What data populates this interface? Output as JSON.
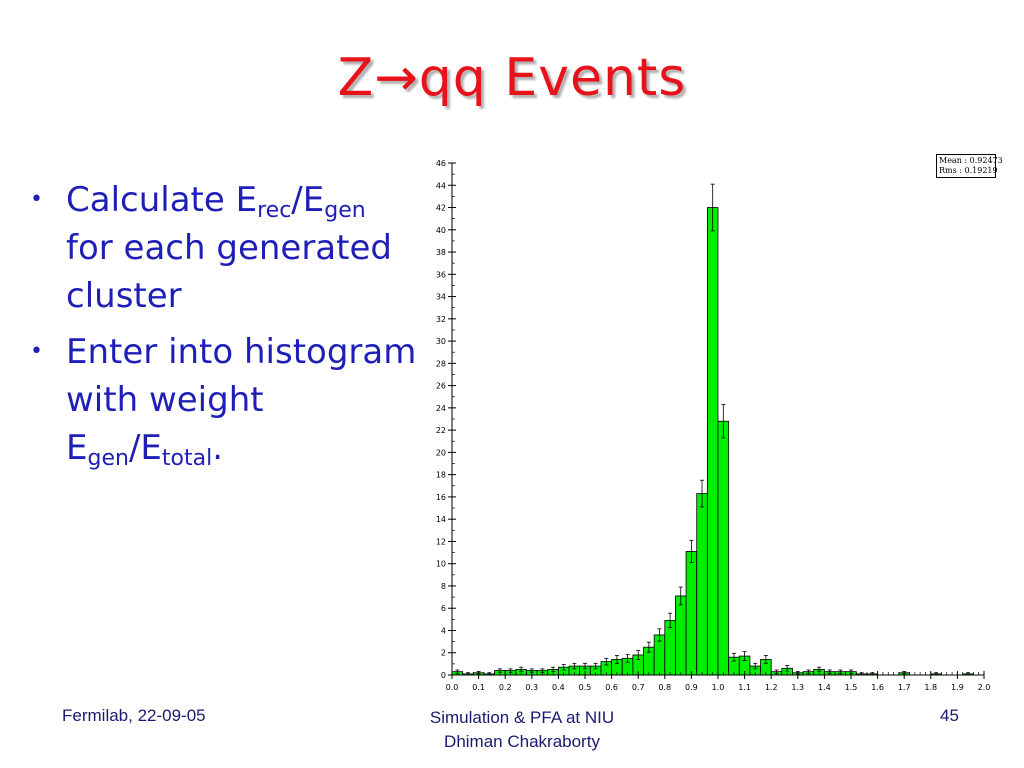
{
  "slide": {
    "title": "Z→qq Events",
    "bullets": [
      {
        "parts": [
          {
            "t": "Calculate E"
          },
          {
            "sub": "rec"
          },
          {
            "t": "/E"
          },
          {
            "sub": "gen"
          },
          {
            "t": " for each generated cluster"
          }
        ]
      },
      {
        "parts": [
          {
            "t": "Enter into histogram with weight E"
          },
          {
            "sub": "gen"
          },
          {
            "t": "/E"
          },
          {
            "sub": "total"
          },
          {
            "t": "."
          }
        ]
      }
    ],
    "footer": {
      "left": "Fermilab, 22-09-05",
      "center_line1": "Simulation & PFA at NIU",
      "center_line2": "Dhiman Chakraborty",
      "page": "45"
    }
  },
  "stats_box": {
    "mean_label": "Mean :",
    "mean_value": "0.92473",
    "rms_label": "Rms :",
    "rms_value": "0.19219"
  },
  "chart_data": {
    "type": "bar",
    "bar_color": "#00ee00",
    "xlim": [
      0.0,
      2.0
    ],
    "ylim": [
      0,
      46
    ],
    "bin_width": 0.04,
    "x_ticks": [
      "0.0",
      "0.1",
      "0.2",
      "0.3",
      "0.4",
      "0.5",
      "0.6",
      "0.7",
      "0.8",
      "0.9",
      "1.0",
      "1.1",
      "1.2",
      "1.3",
      "1.4",
      "1.5",
      "1.6",
      "1.7",
      "1.8",
      "1.9",
      "2.0"
    ],
    "y_ticks": [
      0,
      2,
      4,
      6,
      8,
      10,
      12,
      14,
      16,
      18,
      20,
      22,
      24,
      26,
      28,
      30,
      32,
      34,
      36,
      38,
      40,
      42,
      44,
      46
    ],
    "values": [
      0.3,
      0.1,
      0.2,
      0.1,
      0.4,
      0.4,
      0.5,
      0.4,
      0.4,
      0.5,
      0.7,
      0.8,
      0.8,
      0.8,
      1.2,
      1.4,
      1.5,
      1.8,
      2.5,
      3.6,
      4.9,
      7.1,
      11.1,
      16.3,
      42.0,
      22.8,
      1.6,
      1.7,
      0.8,
      1.4,
      0.3,
      0.6,
      0.2,
      0.3,
      0.5,
      0.3,
      0.3,
      0.3,
      0.1,
      0.1,
      0.0,
      0.0,
      0.2,
      0.0,
      0.0,
      0.1,
      0.0,
      0.0,
      0.1,
      0.0
    ],
    "errors": [
      0.15,
      0.1,
      0.1,
      0.1,
      0.15,
      0.15,
      0.2,
      0.15,
      0.15,
      0.2,
      0.25,
      0.25,
      0.25,
      0.25,
      0.3,
      0.35,
      0.35,
      0.4,
      0.45,
      0.55,
      0.65,
      0.8,
      1.0,
      1.2,
      2.1,
      1.5,
      0.35,
      0.4,
      0.25,
      0.35,
      0.15,
      0.25,
      0.1,
      0.15,
      0.2,
      0.15,
      0.15,
      0.15,
      0.1,
      0.1,
      0,
      0,
      0.1,
      0,
      0,
      0.1,
      0,
      0,
      0.1,
      0
    ]
  }
}
